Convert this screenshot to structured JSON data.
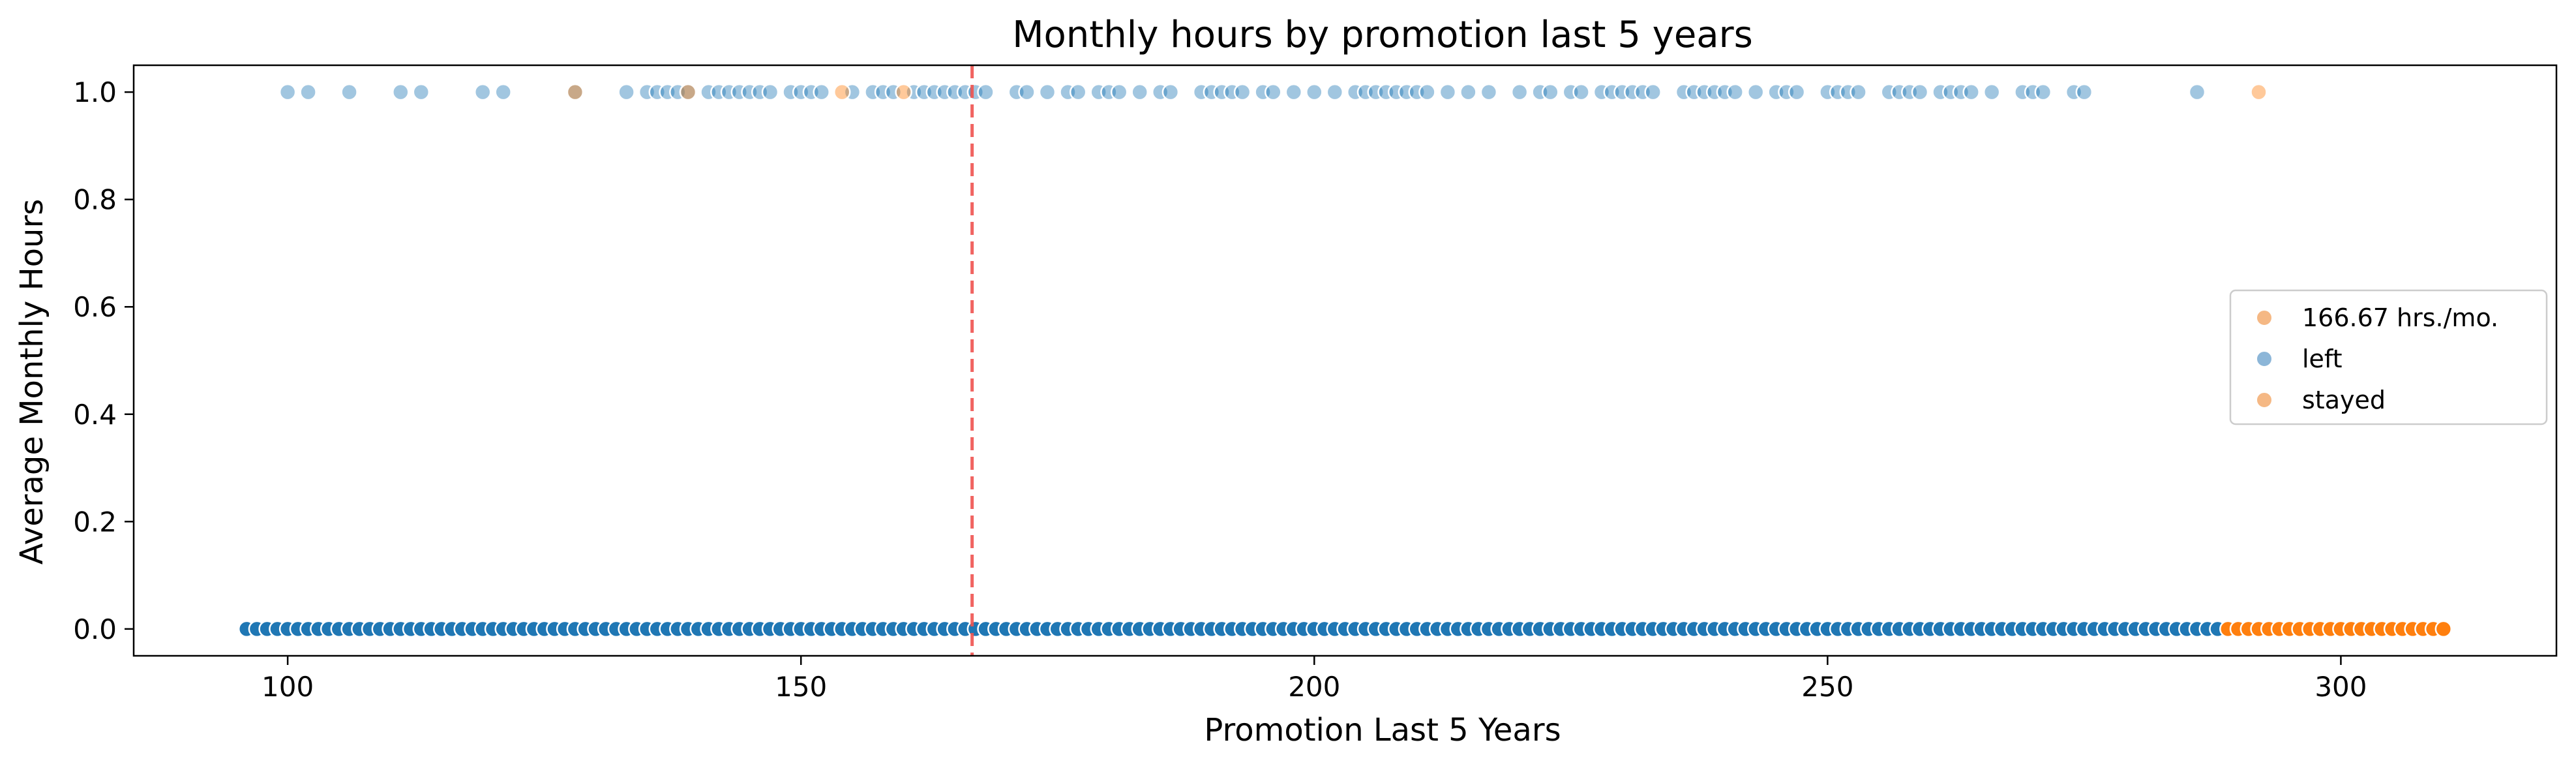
{
  "chart_data": {
    "type": "scatter",
    "title": "Monthly hours by promotion last 5 years",
    "xlabel": "Promotion Last 5 Years",
    "ylabel": "Average Monthly Hours",
    "xlim": [
      85,
      321
    ],
    "ylim": [
      -0.05,
      1.05
    ],
    "x_ticks": [
      100,
      150,
      200,
      250,
      300
    ],
    "y_ticks": [
      0.0,
      0.2,
      0.4,
      0.6,
      0.8,
      1.0
    ],
    "x_tick_labels": [
      "100",
      "150",
      "200",
      "250",
      "300"
    ],
    "y_tick_labels": [
      "0.0",
      "0.2",
      "0.4",
      "0.6",
      "0.8",
      "1.0"
    ],
    "grid": false,
    "legend_position": "center-right",
    "reference_line": {
      "x": 166.67,
      "label": "166.67 hrs./mo.",
      "color": "#ef5350",
      "style": "dashed"
    },
    "legend": [
      {
        "label": "166.67 hrs./mo.",
        "color": "#f5b884"
      },
      {
        "label": "left",
        "color": "#8cb6d8"
      },
      {
        "label": "stayed",
        "color": "#f5b884"
      }
    ],
    "series": [
      {
        "name": "left",
        "color": "#1f77b4",
        "y": 0,
        "x": [
          96,
          97,
          98,
          99,
          100,
          101,
          102,
          103,
          104,
          105,
          106,
          107,
          108,
          109,
          110,
          111,
          112,
          113,
          114,
          115,
          116,
          117,
          118,
          119,
          120,
          121,
          122,
          123,
          124,
          125,
          126,
          127,
          128,
          129,
          130,
          131,
          132,
          133,
          134,
          135,
          136,
          137,
          138,
          139,
          140,
          141,
          142,
          143,
          144,
          145,
          146,
          147,
          148,
          149,
          150,
          151,
          152,
          153,
          154,
          155,
          156,
          157,
          158,
          159,
          160,
          161,
          162,
          163,
          164,
          165,
          166,
          167,
          168,
          169,
          170,
          171,
          172,
          173,
          174,
          175,
          176,
          177,
          178,
          179,
          180,
          181,
          182,
          183,
          184,
          185,
          186,
          187,
          188,
          189,
          190,
          191,
          192,
          193,
          194,
          195,
          196,
          197,
          198,
          199,
          200,
          201,
          202,
          203,
          204,
          205,
          206,
          207,
          208,
          209,
          210,
          211,
          212,
          213,
          214,
          215,
          216,
          217,
          218,
          219,
          220,
          221,
          222,
          223,
          224,
          225,
          226,
          227,
          228,
          229,
          230,
          231,
          232,
          233,
          234,
          235,
          236,
          237,
          238,
          239,
          240,
          241,
          242,
          243,
          244,
          245,
          246,
          247,
          248,
          249,
          250,
          251,
          252,
          253,
          254,
          255,
          256,
          257,
          258,
          259,
          260,
          261,
          262,
          263,
          264,
          265,
          266,
          267,
          268,
          269,
          270,
          271,
          272,
          273,
          274,
          275,
          276,
          277,
          278,
          279,
          280,
          281,
          282,
          283,
          284,
          285,
          286,
          287,
          288
        ]
      },
      {
        "name": "stayed",
        "color": "#ff7f0e",
        "y": 0,
        "x": [
          289,
          290,
          291,
          292,
          293,
          294,
          295,
          296,
          297,
          298,
          299,
          300,
          301,
          302,
          303,
          304,
          305,
          306,
          307,
          308,
          309,
          310
        ]
      },
      {
        "name": "left",
        "color": "#1f77b4",
        "y": 1,
        "x": [
          100,
          102,
          106,
          111,
          113,
          119,
          121,
          128,
          133,
          135,
          136,
          137,
          138,
          139,
          141,
          142,
          143,
          144,
          145,
          146,
          147,
          149,
          150,
          151,
          152,
          155,
          157,
          158,
          159,
          161,
          162,
          163,
          164,
          165,
          166,
          167,
          168,
          171,
          172,
          174,
          176,
          177,
          179,
          180,
          181,
          183,
          185,
          186,
          189,
          190,
          191,
          192,
          193,
          195,
          196,
          198,
          200,
          202,
          204,
          205,
          206,
          207,
          208,
          209,
          210,
          211,
          213,
          215,
          217,
          220,
          222,
          223,
          225,
          226,
          228,
          229,
          230,
          231,
          232,
          233,
          236,
          237,
          238,
          239,
          240,
          241,
          243,
          245,
          246,
          247,
          250,
          251,
          252,
          253,
          256,
          257,
          258,
          259,
          261,
          262,
          263,
          264,
          266,
          269,
          270,
          271,
          274,
          275,
          286
        ]
      },
      {
        "name": "stayed",
        "color": "#ff7f0e",
        "y": 1,
        "x": [
          128,
          139,
          154,
          160,
          292
        ]
      }
    ]
  }
}
